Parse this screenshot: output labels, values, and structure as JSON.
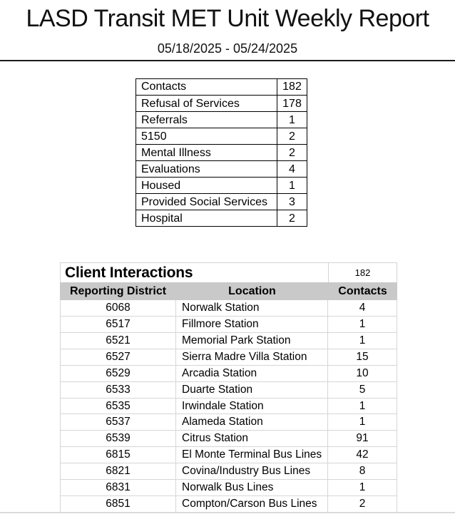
{
  "page": {
    "title": "LASD Transit MET Unit Weekly Report",
    "date_range": "05/18/2025 - 05/24/2025"
  },
  "summary_table": {
    "rows": [
      {
        "label": "Contacts",
        "value": "182"
      },
      {
        "label": "Refusal of Services",
        "value": "178"
      },
      {
        "label": "Referrals",
        "value": "1"
      },
      {
        "label": "5150",
        "value": "2"
      },
      {
        "label": "Mental Illness",
        "value": "2"
      },
      {
        "label": "Evaluations",
        "value": "4"
      },
      {
        "label": "Housed",
        "value": "1"
      },
      {
        "label": "Provided Social Services",
        "value": "3"
      },
      {
        "label": "Hospital",
        "value": "2"
      }
    ]
  },
  "client_interactions": {
    "title": "Client Interactions",
    "total_contacts": "182",
    "columns": {
      "district": "Reporting District",
      "location": "Location",
      "contacts": "Contacts"
    },
    "rows": [
      {
        "district": "6068",
        "location": "Norwalk Station",
        "contacts": "4"
      },
      {
        "district": "6517",
        "location": "Fillmore Station",
        "contacts": "1"
      },
      {
        "district": "6521",
        "location": "Memorial Park Station",
        "contacts": "1"
      },
      {
        "district": "6527",
        "location": "Sierra Madre Villa Station",
        "contacts": "15"
      },
      {
        "district": "6529",
        "location": "Arcadia Station",
        "contacts": "10"
      },
      {
        "district": "6533",
        "location": "Duarte Station",
        "contacts": "5"
      },
      {
        "district": "6535",
        "location": "Irwindale Station",
        "contacts": "1"
      },
      {
        "district": "6537",
        "location": "Alameda Station",
        "contacts": "1"
      },
      {
        "district": "6539",
        "location": "Citrus Station",
        "contacts": "91"
      },
      {
        "district": "6815",
        "location": "El Monte Terminal Bus Lines",
        "contacts": "42"
      },
      {
        "district": "6821",
        "location": "Covina/Industry Bus Lines",
        "contacts": "8"
      },
      {
        "district": "6831",
        "location": "Norwalk Bus Lines",
        "contacts": "1"
      },
      {
        "district": "6851",
        "location": "Compton/Carson Bus Lines",
        "contacts": "2"
      }
    ]
  },
  "colors": {
    "header_gray": "#c9c9c9",
    "grid_light": "#d6d6d6",
    "grid_dark": "#000000",
    "rule_dark": "#1a1a1a"
  }
}
